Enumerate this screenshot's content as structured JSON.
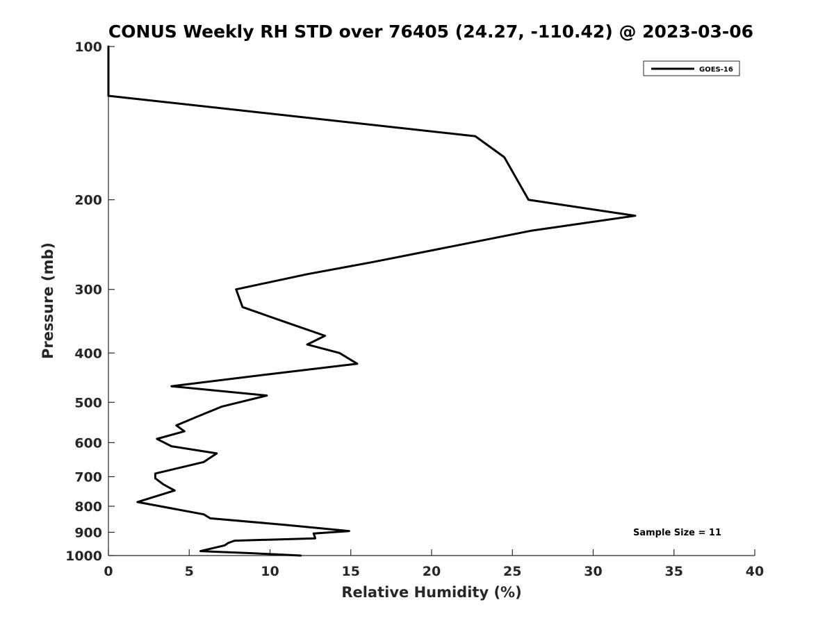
{
  "chart_data": {
    "type": "line",
    "title": "CONUS Weekly RH STD over 76405 (24.27, -110.42) @ 2023-03-06",
    "xlabel": "Relative Humidity (%)",
    "ylabel": "Pressure (mb)",
    "xlim": [
      0,
      40
    ],
    "ylim": [
      100,
      1000
    ],
    "y_scale": "log",
    "y_reversed": true,
    "x_ticks": [
      0,
      5,
      10,
      15,
      20,
      25,
      30,
      35,
      40
    ],
    "x_tick_labels": [
      "0",
      "5",
      "10",
      "15",
      "20",
      "25",
      "30",
      "35",
      "40"
    ],
    "y_ticks": [
      100,
      200,
      300,
      400,
      500,
      600,
      700,
      800,
      900,
      1000
    ],
    "y_tick_labels": [
      "100",
      "200",
      "300",
      "400",
      "500",
      "600",
      "700",
      "800",
      "900",
      "1000"
    ],
    "grid": false,
    "legend_position": "top-right",
    "series": [
      {
        "name": "GOES-16",
        "color": "#000000",
        "points": [
          [
            0.0,
            100
          ],
          [
            0.0,
            125
          ],
          [
            22.7,
            150
          ],
          [
            24.5,
            165
          ],
          [
            26.0,
            200
          ],
          [
            32.6,
            215
          ],
          [
            26.2,
            230
          ],
          [
            16.4,
            265
          ],
          [
            12.3,
            280
          ],
          [
            7.9,
            300
          ],
          [
            8.3,
            325
          ],
          [
            11.2,
            350
          ],
          [
            13.4,
            370
          ],
          [
            12.3,
            385
          ],
          [
            14.3,
            400
          ],
          [
            15.4,
            420
          ],
          [
            10.0,
            440
          ],
          [
            3.9,
            465
          ],
          [
            9.8,
            485
          ],
          [
            7.0,
            510
          ],
          [
            5.4,
            535
          ],
          [
            4.2,
            555
          ],
          [
            4.7,
            570
          ],
          [
            3.0,
            590
          ],
          [
            3.9,
            610
          ],
          [
            6.7,
            630
          ],
          [
            5.9,
            655
          ],
          [
            2.9,
            690
          ],
          [
            2.9,
            705
          ],
          [
            3.4,
            725
          ],
          [
            4.1,
            745
          ],
          [
            1.8,
            785
          ],
          [
            5.9,
            830
          ],
          [
            6.3,
            845
          ],
          [
            10.9,
            870
          ],
          [
            14.9,
            895
          ],
          [
            12.7,
            905
          ],
          [
            12.8,
            925
          ],
          [
            7.8,
            935
          ],
          [
            7.4,
            945
          ],
          [
            7.2,
            955
          ],
          [
            5.7,
            980
          ],
          [
            9.0,
            990
          ],
          [
            11.9,
            1000
          ]
        ]
      }
    ],
    "annotations": [
      "Sample Size = 11"
    ]
  }
}
